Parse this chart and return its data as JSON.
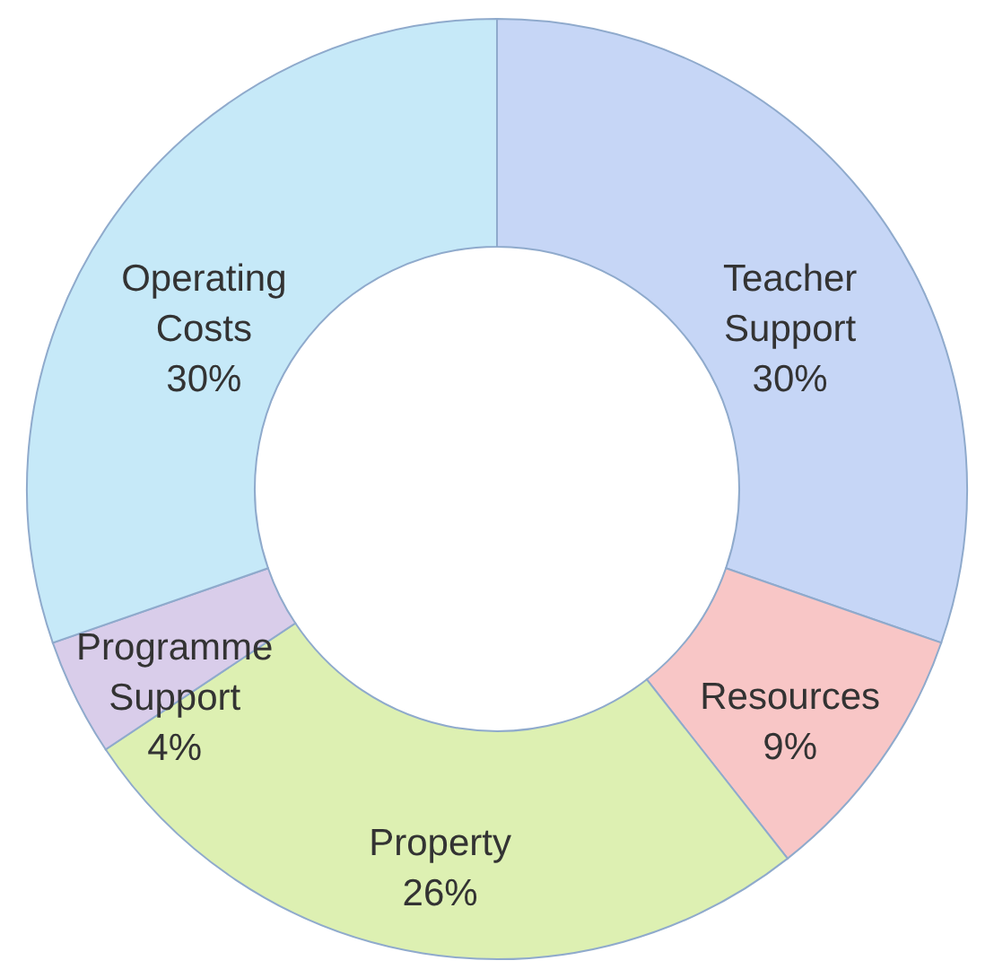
{
  "chart_data": {
    "type": "donut",
    "categories": [
      "Teacher Support",
      "Resources",
      "Property",
      "Programme Support",
      "Operating Costs"
    ],
    "values": [
      30,
      9,
      26,
      4,
      30
    ],
    "colors": [
      "#c6d6f6",
      "#f8c6c6",
      "#ddf0b2",
      "#d9cdea",
      "#c6e9f8"
    ],
    "value_labels": [
      "30%",
      "9%",
      "26%",
      "4%",
      "30%"
    ]
  }
}
